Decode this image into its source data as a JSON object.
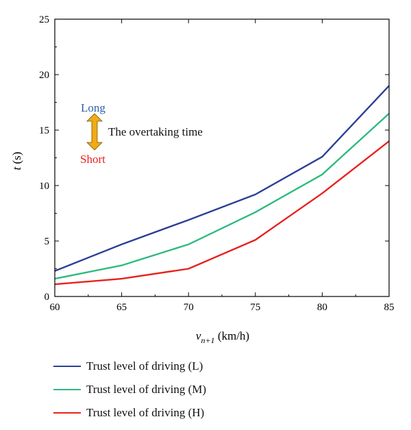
{
  "chart_data": {
    "type": "line",
    "xlabel": {
      "main": "v",
      "sub": "n+1",
      "unit": " (km/h)"
    },
    "ylabel": {
      "main": "t",
      "unit": " (s)"
    },
    "xlim": [
      60,
      85
    ],
    "ylim": [
      0,
      25
    ],
    "xticks": [
      "60",
      "65",
      "70",
      "75",
      "80",
      "85"
    ],
    "yticks": [
      "0",
      "5",
      "10",
      "15",
      "20",
      "25"
    ],
    "x": [
      60,
      65,
      70,
      75,
      80,
      85
    ],
    "series": [
      {
        "name": "Trust level of driving (L)",
        "color": "#2b3f95",
        "values": [
          2.3,
          4.7,
          6.9,
          9.2,
          12.6,
          19.0
        ]
      },
      {
        "name": "Trust level of driving (M)",
        "color": "#2dbb7e",
        "values": [
          1.6,
          2.8,
          4.7,
          7.6,
          11.0,
          16.5
        ]
      },
      {
        "name": "Trust level of driving (H)",
        "color": "#e8211d",
        "values": [
          1.1,
          1.6,
          2.5,
          5.1,
          9.3,
          14.0
        ]
      }
    ],
    "annotation": {
      "long": "Long",
      "short": "Short",
      "text": "The overtaking time",
      "long_color": "#2b5fa8",
      "short_color": "#e8211d",
      "arrow_color": "#f1ab17"
    }
  }
}
